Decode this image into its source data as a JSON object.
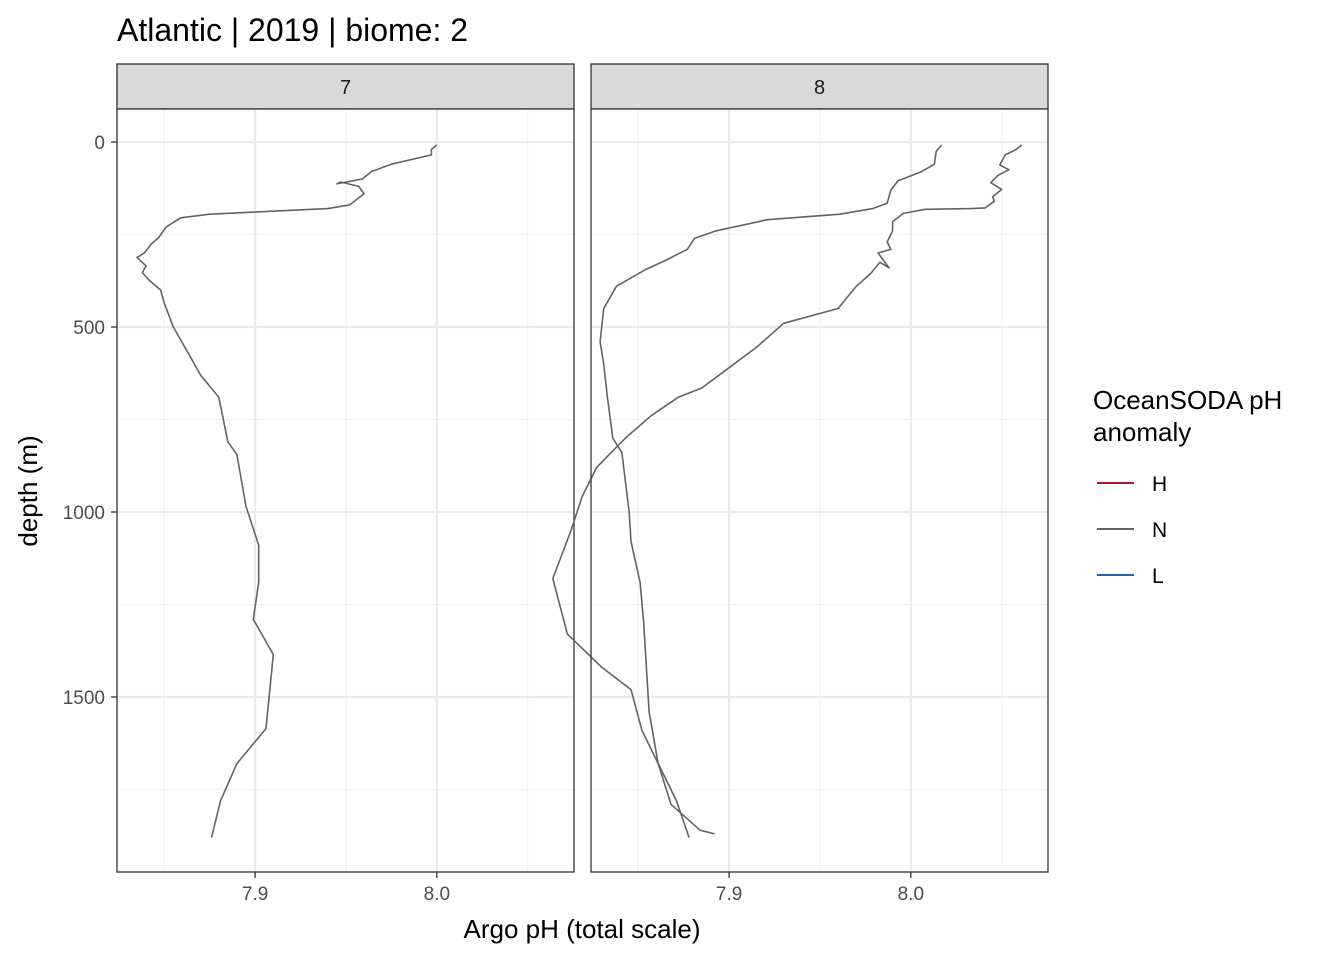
{
  "chart_data": {
    "type": "line",
    "title": "Atlantic | 2019 | biome: 2",
    "xlabel": "Argo pH (total scale)",
    "ylabel": "depth (m)",
    "xlim": [
      7.824,
      8.0755
    ],
    "ylim": [
      0,
      1900
    ],
    "y_reversed": true,
    "x_ticks": [
      7.9,
      8.0
    ],
    "x_tick_labels": [
      "7.9",
      "8.0"
    ],
    "y_ticks": [
      0,
      500,
      1000,
      1500
    ],
    "y_tick_labels": [
      "0",
      "500",
      "1000",
      "1500"
    ],
    "grid": true,
    "legend": {
      "title_line1": "OceanSODA pH",
      "title_line2": "anomaly",
      "placement": "right",
      "entries": [
        {
          "label": "H",
          "color": "#b2182b"
        },
        {
          "label": "N",
          "color": "#636363"
        },
        {
          "label": "L",
          "color": "#2166ac"
        }
      ]
    },
    "facets": [
      {
        "label": "7",
        "series": [
          {
            "anomaly": "N",
            "points": [
              [
                8.0,
                8
              ],
              [
                7.997,
                20
              ],
              [
                7.997,
                35
              ],
              [
                7.975,
                60
              ],
              [
                7.964,
                80
              ],
              [
                7.959,
                100
              ],
              [
                7.945,
                113
              ],
              [
                7.947,
                108
              ],
              [
                7.957,
                120
              ],
              [
                7.96,
                140
              ],
              [
                7.952,
                170
              ],
              [
                7.94,
                180
              ],
              [
                7.875,
                195
              ],
              [
                7.859,
                205
              ],
              [
                7.851,
                230
              ],
              [
                7.847,
                258
              ],
              [
                7.843,
                275
              ],
              [
                7.839,
                300
              ],
              [
                7.835,
                312
              ],
              [
                7.84,
                335
              ],
              [
                7.838,
                353
              ],
              [
                7.842,
                375
              ],
              [
                7.848,
                400
              ],
              [
                7.85,
                435
              ],
              [
                7.855,
                500
              ],
              [
                7.862,
                560
              ],
              [
                7.87,
                630
              ],
              [
                7.88,
                690
              ],
              [
                7.885,
                810
              ],
              [
                7.89,
                845
              ],
              [
                7.895,
                985
              ],
              [
                7.902,
                1090
              ],
              [
                7.902,
                1190
              ],
              [
                7.899,
                1290
              ],
              [
                7.91,
                1385
              ],
              [
                7.906,
                1585
              ],
              [
                7.89,
                1680
              ],
              [
                7.881,
                1780
              ],
              [
                7.876,
                1880
              ]
            ]
          }
        ]
      },
      {
        "label": "8",
        "series": [
          {
            "anomaly": "N",
            "points": [
              [
                8.017,
                8
              ],
              [
                8.014,
                25
              ],
              [
                8.013,
                60
              ],
              [
                8.006,
                80
              ],
              [
                7.993,
                105
              ],
              [
                7.989,
                130
              ],
              [
                7.987,
                165
              ],
              [
                7.979,
                180
              ],
              [
                7.961,
                195
              ],
              [
                7.921,
                210
              ],
              [
                7.893,
                240
              ],
              [
                7.881,
                260
              ],
              [
                7.877,
                290
              ],
              [
                7.865,
                320
              ],
              [
                7.854,
                345
              ],
              [
                7.838,
                390
              ],
              [
                7.831,
                450
              ],
              [
                7.829,
                540
              ],
              [
                7.831,
                600
              ],
              [
                7.833,
                690
              ],
              [
                7.836,
                800
              ],
              [
                7.841,
                840
              ],
              [
                7.843,
                920
              ],
              [
                7.845,
                1000
              ],
              [
                7.846,
                1080
              ],
              [
                7.851,
                1190
              ],
              [
                7.853,
                1300
              ],
              [
                7.856,
                1540
              ],
              [
                7.861,
                1680
              ],
              [
                7.871,
                1780
              ],
              [
                7.878,
                1880
              ]
            ]
          },
          {
            "anomaly": "N",
            "points": [
              [
                8.061,
                8
              ],
              [
                8.058,
                20
              ],
              [
                8.052,
                35
              ],
              [
                8.049,
                62
              ],
              [
                8.054,
                75
              ],
              [
                8.048,
                90
              ],
              [
                8.044,
                110
              ],
              [
                8.05,
                128
              ],
              [
                8.045,
                148
              ],
              [
                8.046,
                160
              ],
              [
                8.041,
                178
              ],
              [
                8.033,
                180
              ],
              [
                8.008,
                182
              ],
              [
                7.996,
                193
              ],
              [
                7.99,
                215
              ],
              [
                7.99,
                240
              ],
              [
                7.987,
                270
              ],
              [
                7.989,
                290
              ],
              [
                7.982,
                300
              ],
              [
                7.988,
                340
              ],
              [
                7.983,
                325
              ],
              [
                7.978,
                355
              ],
              [
                7.97,
                390
              ],
              [
                7.96,
                450
              ],
              [
                7.93,
                490
              ],
              [
                7.915,
                555
              ],
              [
                7.9,
                610
              ],
              [
                7.885,
                665
              ],
              [
                7.872,
                690
              ],
              [
                7.857,
                740
              ],
              [
                7.843,
                800
              ],
              [
                7.834,
                845
              ],
              [
                7.827,
                880
              ],
              [
                7.819,
                960
              ],
              [
                7.813,
                1050
              ],
              [
                7.803,
                1180
              ],
              [
                7.811,
                1330
              ],
              [
                7.83,
                1420
              ],
              [
                7.846,
                1480
              ],
              [
                7.852,
                1590
              ],
              [
                7.861,
                1680
              ],
              [
                7.868,
                1790
              ],
              [
                7.884,
                1860
              ],
              [
                7.892,
                1870
              ]
            ]
          }
        ]
      }
    ]
  }
}
